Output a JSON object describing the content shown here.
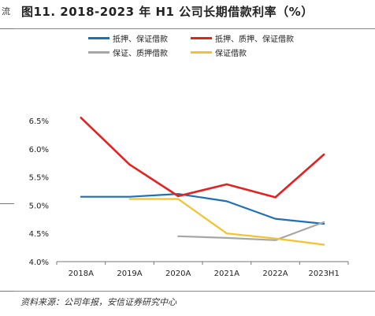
{
  "page": {
    "edge_text": "流",
    "title": "图11. 2018-2023 年 H1 公司长期借款利率（%）",
    "source": "资料来源：公司年报，安信证券研究中心"
  },
  "chart_data": {
    "type": "line",
    "title": "图11. 2018-2023 年 H1 公司长期借款利率（%）",
    "xlabel": "",
    "ylabel": "",
    "categories": [
      "2018A",
      "2019A",
      "2020A",
      "2021A",
      "2022A",
      "2023H1"
    ],
    "ylim": [
      4.0,
      6.5
    ],
    "yticks": [
      4.0,
      4.5,
      5.0,
      5.5,
      6.0,
      6.5
    ],
    "ytick_labels": [
      "4.0%",
      "4.5%",
      "5.0%",
      "5.5%",
      "6.0%",
      "6.5%"
    ],
    "grid": false,
    "legend_position": "top",
    "series": [
      {
        "name": "抵押、保证借款",
        "color": "#1f6fb5",
        "values": [
          5.15,
          5.15,
          5.2,
          5.07,
          4.76,
          4.67
        ]
      },
      {
        "name": "抵押、质押、保证借款",
        "color": "#e8201e",
        "values": [
          6.55,
          5.72,
          5.16,
          5.37,
          5.14,
          5.9
        ]
      },
      {
        "name": "保证、质押借款",
        "color": "#a6a6a6",
        "values": [
          null,
          null,
          4.45,
          4.42,
          4.38,
          4.7
        ]
      },
      {
        "name": "保证借款",
        "color": "#f5c12e",
        "values": [
          null,
          5.11,
          5.11,
          4.5,
          4.41,
          4.3
        ]
      }
    ]
  }
}
